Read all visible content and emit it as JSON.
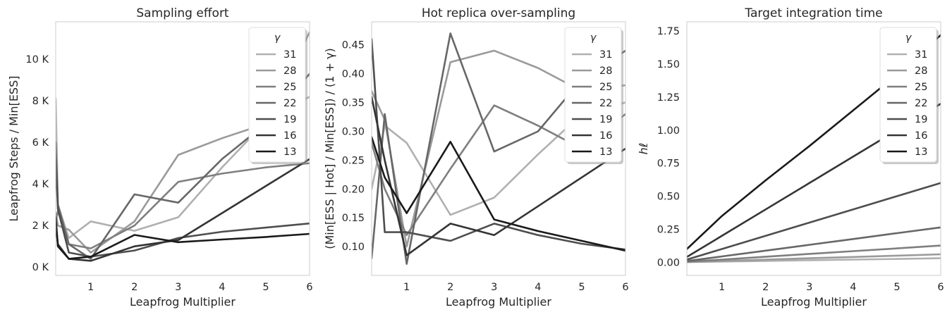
{
  "figure": {
    "legend_title": "γ",
    "legend_labels": [
      "31",
      "28",
      "25",
      "22",
      "19",
      "16",
      "13"
    ],
    "series_colors": [
      "#b0b0b0",
      "#9a9a9a",
      "#7f7f7f",
      "#676767",
      "#4e4e4e",
      "#343434",
      "#1a1a1a"
    ],
    "legend_placement": "top-right",
    "grid": false
  },
  "chart_data": [
    {
      "type": "line",
      "title": "Sampling effort",
      "xlabel": "Leapfrog Multiplier",
      "ylabel": "Leapfrog Steps / Min[ESS]",
      "xlim": [
        0.2,
        6
      ],
      "ylim": [
        -400,
        11800
      ],
      "xticks": [
        1,
        2,
        3,
        4,
        5,
        6
      ],
      "yticks": [
        0,
        2000,
        4000,
        6000,
        8000,
        10000
      ],
      "ytick_labels": [
        "0 K",
        "2 K",
        "4 K",
        "6 K",
        "8 K",
        "10 K"
      ],
      "x": [
        0.2,
        0.25,
        0.5,
        1,
        2,
        3,
        4,
        5,
        6
      ],
      "series": [
        {
          "name": "31",
          "values": [
            8100,
            3000,
            1400,
            2200,
            1750,
            2400,
            4800,
            7000,
            8200
          ]
        },
        {
          "name": "28",
          "values": [
            2600,
            2000,
            1800,
            700,
            2200,
            5400,
            6200,
            6900,
            11300
          ]
        },
        {
          "name": "25",
          "values": [
            2200,
            2700,
            1100,
            900,
            2000,
            4100,
            4500,
            4800,
            5000
          ]
        },
        {
          "name": "22",
          "values": [
            6000,
            3000,
            1100,
            400,
            3500,
            3100,
            5200,
            6900,
            9300
          ]
        },
        {
          "name": "19",
          "values": [
            5200,
            2800,
            700,
            500,
            800,
            1400,
            1700,
            1900,
            2100
          ]
        },
        {
          "name": "16",
          "values": [
            2100,
            1100,
            400,
            300,
            1000,
            1300,
            2600,
            3900,
            5200
          ]
        },
        {
          "name": "13",
          "values": [
            2400,
            1000,
            400,
            500,
            1550,
            1200,
            1330,
            1450,
            1600
          ]
        }
      ]
    },
    {
      "type": "line",
      "title": "Hot replica over-sampling",
      "xlabel": "Leapfrog Multiplier",
      "ylabel": "(Min[ESS | Hot] / Min[ESS]) / (1 + γ)",
      "xlim": [
        0.2,
        6
      ],
      "ylim": [
        0.05,
        0.49
      ],
      "xticks": [
        1,
        2,
        3,
        4,
        5,
        6
      ],
      "yticks": [
        0.1,
        0.15,
        0.2,
        0.25,
        0.3,
        0.35,
        0.4,
        0.45
      ],
      "ytick_labels": [
        "0.10",
        "0.15",
        "0.20",
        "0.25",
        "0.30",
        "0.35",
        "0.40",
        "0.45"
      ],
      "x": [
        0.2,
        0.5,
        1,
        2,
        3,
        4,
        5,
        6
      ],
      "series": [
        {
          "name": "31",
          "values": [
            0.2,
            0.31,
            0.28,
            0.155,
            0.185,
            0.26,
            0.33,
            0.35
          ]
        },
        {
          "name": "28",
          "values": [
            0.37,
            0.32,
            0.1,
            0.42,
            0.44,
            0.41,
            0.37,
            0.38
          ]
        },
        {
          "name": "25",
          "values": [
            0.28,
            0.2,
            0.12,
            0.235,
            0.345,
            0.31,
            0.27,
            0.33
          ]
        },
        {
          "name": "22",
          "values": [
            0.08,
            0.33,
            0.07,
            0.47,
            0.265,
            0.3,
            0.39,
            0.44
          ]
        },
        {
          "name": "19",
          "values": [
            0.46,
            0.125,
            0.125,
            0.11,
            0.14,
            0.12,
            0.105,
            0.095
          ]
        },
        {
          "name": "16",
          "values": [
            0.36,
            0.25,
            0.085,
            0.14,
            0.12,
            0.17,
            0.22,
            0.27
          ]
        },
        {
          "name": "13",
          "values": [
            0.29,
            0.22,
            0.158,
            0.282,
            0.147,
            0.127,
            0.11,
            0.093
          ]
        }
      ]
    },
    {
      "type": "line",
      "title": "Target integration time",
      "xlabel": "Leapfrog Multiplier",
      "ylabel": "hℓ",
      "xlim": [
        0.2,
        6
      ],
      "ylim": [
        -0.1,
        1.82
      ],
      "xticks": [
        1,
        2,
        3,
        4,
        5,
        6
      ],
      "yticks": [
        0.0,
        0.25,
        0.5,
        0.75,
        1.0,
        1.25,
        1.5,
        1.75
      ],
      "ytick_labels": [
        "0.00",
        "0.25",
        "0.50",
        "0.75",
        "1.00",
        "1.25",
        "1.50",
        "1.75"
      ],
      "x": [
        0.2,
        1,
        2,
        3,
        4,
        5,
        6
      ],
      "series": [
        {
          "name": "31",
          "values": [
            0.001,
            0.005,
            0.01,
            0.015,
            0.02,
            0.025,
            0.03
          ]
        },
        {
          "name": "28",
          "values": [
            0.002,
            0.01,
            0.02,
            0.03,
            0.04,
            0.05,
            0.06
          ]
        },
        {
          "name": "25",
          "values": [
            0.004,
            0.02,
            0.042,
            0.063,
            0.084,
            0.105,
            0.126
          ]
        },
        {
          "name": "22",
          "values": [
            0.009,
            0.044,
            0.088,
            0.132,
            0.176,
            0.22,
            0.264
          ]
        },
        {
          "name": "19",
          "values": [
            0.02,
            0.1,
            0.2,
            0.3,
            0.4,
            0.5,
            0.6
          ]
        },
        {
          "name": "16",
          "values": [
            0.04,
            0.2,
            0.4,
            0.6,
            0.8,
            1.0,
            1.2
          ]
        },
        {
          "name": "13",
          "values": [
            0.1,
            0.35,
            0.62,
            0.88,
            1.15,
            1.42,
            1.72
          ]
        }
      ]
    }
  ]
}
